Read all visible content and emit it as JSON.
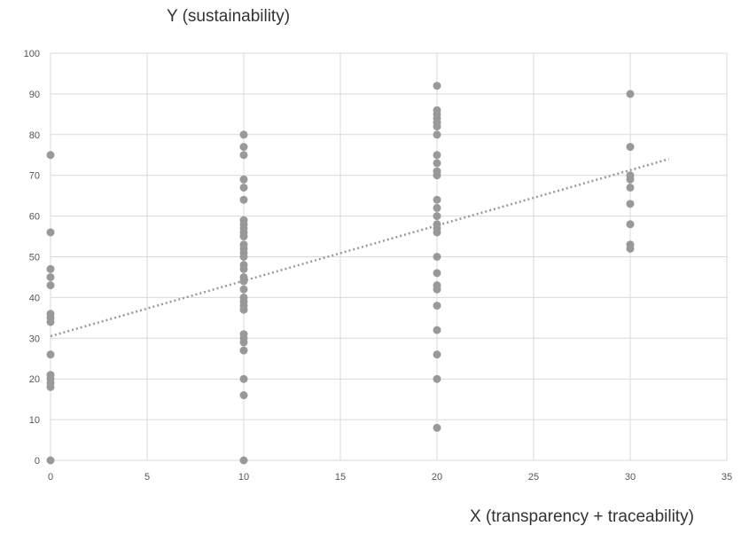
{
  "chart_data": {
    "type": "scatter",
    "title": "",
    "xlabel": "X (transparency + traceability)",
    "ylabel": "Y (sustainability)",
    "xlim": [
      0,
      35
    ],
    "ylim": [
      0,
      100
    ],
    "x_ticks": [
      0,
      5,
      10,
      15,
      20,
      25,
      30,
      35
    ],
    "y_ticks": [
      0,
      10,
      20,
      30,
      40,
      50,
      60,
      70,
      80,
      90,
      100
    ],
    "grid": true,
    "marker_color": "#999999",
    "trendline": {
      "style": "dotted",
      "color": "#999999",
      "x": [
        0,
        32
      ],
      "y": [
        30.5,
        74
      ]
    },
    "series": [
      {
        "points": [
          [
            0,
            75
          ],
          [
            0,
            56
          ],
          [
            0,
            47
          ],
          [
            0,
            45
          ],
          [
            0,
            43
          ],
          [
            0,
            36
          ],
          [
            0,
            35
          ],
          [
            0,
            34
          ],
          [
            0,
            26
          ],
          [
            0,
            21
          ],
          [
            0,
            20
          ],
          [
            0,
            19
          ],
          [
            0,
            18
          ],
          [
            0,
            0
          ],
          [
            10,
            80
          ],
          [
            10,
            77
          ],
          [
            10,
            75
          ],
          [
            10,
            69
          ],
          [
            10,
            67
          ],
          [
            10,
            64
          ],
          [
            10,
            59
          ],
          [
            10,
            58
          ],
          [
            10,
            57
          ],
          [
            10,
            56
          ],
          [
            10,
            55
          ],
          [
            10,
            53
          ],
          [
            10,
            52
          ],
          [
            10,
            51
          ],
          [
            10,
            50
          ],
          [
            10,
            48
          ],
          [
            10,
            47
          ],
          [
            10,
            45
          ],
          [
            10,
            44
          ],
          [
            10,
            42
          ],
          [
            10,
            40
          ],
          [
            10,
            39
          ],
          [
            10,
            38
          ],
          [
            10,
            37
          ],
          [
            10,
            31
          ],
          [
            10,
            30
          ],
          [
            10,
            29
          ],
          [
            10,
            27
          ],
          [
            10,
            20
          ],
          [
            10,
            16
          ],
          [
            10,
            0
          ],
          [
            20,
            92
          ],
          [
            20,
            86
          ],
          [
            20,
            85
          ],
          [
            20,
            84
          ],
          [
            20,
            83
          ],
          [
            20,
            82
          ],
          [
            20,
            80
          ],
          [
            20,
            75
          ],
          [
            20,
            73
          ],
          [
            20,
            71
          ],
          [
            20,
            70
          ],
          [
            20,
            64
          ],
          [
            20,
            62
          ],
          [
            20,
            60
          ],
          [
            20,
            58
          ],
          [
            20,
            57
          ],
          [
            20,
            56
          ],
          [
            20,
            50
          ],
          [
            20,
            46
          ],
          [
            20,
            43
          ],
          [
            20,
            42
          ],
          [
            20,
            38
          ],
          [
            20,
            32
          ],
          [
            20,
            26
          ],
          [
            20,
            20
          ],
          [
            20,
            8
          ],
          [
            30,
            90
          ],
          [
            30,
            77
          ],
          [
            30,
            70
          ],
          [
            30,
            69
          ],
          [
            30,
            67
          ],
          [
            30,
            63
          ],
          [
            30,
            58
          ],
          [
            30,
            53
          ],
          [
            30,
            52
          ]
        ]
      }
    ]
  }
}
